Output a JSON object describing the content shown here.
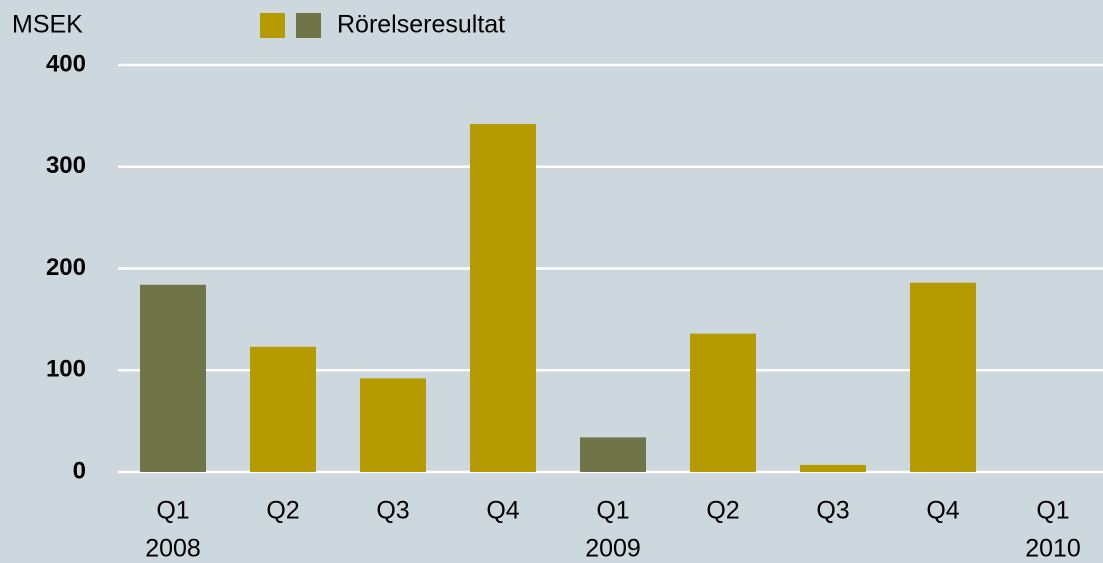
{
  "chart_data": {
    "type": "bar",
    "y_axis_label": "MSEK",
    "categories": [
      [
        "Q1",
        "2008"
      ],
      [
        "Q2"
      ],
      [
        "Q3"
      ],
      [
        "Q4"
      ],
      [
        "Q1",
        "2009"
      ],
      [
        "Q2"
      ],
      [
        "Q3"
      ],
      [
        "Q4"
      ],
      [
        "Q1",
        "2010"
      ]
    ],
    "series": [
      {
        "name": "Rörelseresultat",
        "colors": [
          "#6f7546",
          "#b59a00",
          "#b59a00",
          "#b59a00",
          "#6f7546",
          "#b59a00",
          "#b59a00",
          "#b59a00",
          "#6f7546"
        ],
        "values": [
          184,
          123,
          92,
          342,
          34,
          136,
          7,
          186,
          null
        ]
      }
    ],
    "legend_colors": [
      "#b59a00",
      "#6f7546"
    ],
    "ylim": [
      0,
      400
    ],
    "yticks": [
      0,
      100,
      200,
      300,
      400
    ],
    "grid": true
  }
}
